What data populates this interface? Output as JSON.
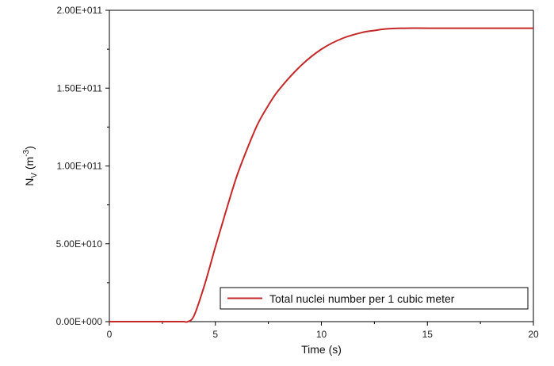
{
  "chart_data": {
    "type": "line",
    "title": "",
    "xlabel": "Time (s)",
    "ylabel_main": "N",
    "ylabel_sub": "V",
    "ylabel_unit_open": " (m",
    "ylabel_unit_exp": "-3",
    "ylabel_unit_close": ")",
    "xlim": [
      0,
      20
    ],
    "ylim": [
      0,
      200000000000
    ],
    "x_ticks": [
      0,
      5,
      10,
      15,
      20
    ],
    "x_tick_labels": [
      "0",
      "5",
      "10",
      "15",
      "20"
    ],
    "y_ticks": [
      0,
      50000000000,
      100000000000,
      150000000000,
      200000000000
    ],
    "y_tick_labels": [
      "0.00E+000",
      "5.00E+010",
      "1.00E+011",
      "1.50E+011",
      "2.00E+011"
    ],
    "grid": false,
    "legend_position": "bottom-right",
    "colors": {
      "series": "#c62828",
      "axis": "#000000"
    },
    "series": [
      {
        "name": "Total nuclei number per 1 cubic meter",
        "x": [
          0,
          1,
          2,
          3,
          3.5,
          3.7,
          4.0,
          4.5,
          5.0,
          5.5,
          6.0,
          6.5,
          7.0,
          7.5,
          8.0,
          9.0,
          10.0,
          11.0,
          12.0,
          12.5,
          13.0,
          14.0,
          15.0,
          16.0,
          17.0,
          18.0,
          19.0,
          20.0
        ],
        "y": [
          0,
          0,
          0,
          0,
          0,
          0,
          4000000000,
          24000000000,
          48000000000,
          71000000000,
          93000000000,
          111000000000,
          127000000000,
          139000000000,
          149000000000,
          164000000000,
          175000000000,
          182000000000,
          186000000000,
          187000000000,
          188000000000,
          188500000000,
          188500000000,
          188500000000,
          188500000000,
          188500000000,
          188500000000,
          188500000000
        ]
      }
    ]
  }
}
